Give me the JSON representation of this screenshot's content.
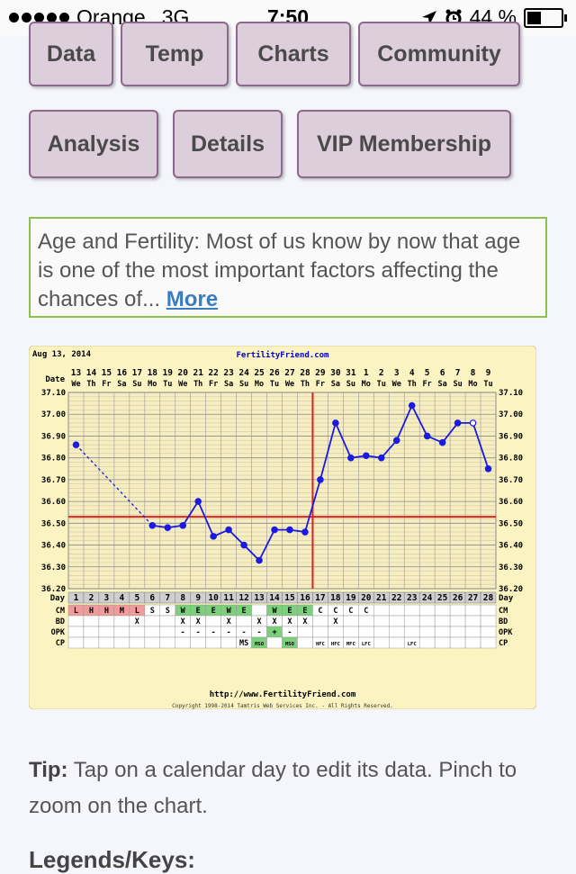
{
  "status": {
    "carrier": "Orange",
    "network": "3G",
    "time": "7:50",
    "battery": "44 %",
    "battery_level": 0.44
  },
  "nav": {
    "row1": [
      "Data",
      "Temp",
      "Charts",
      "Community"
    ],
    "row2": [
      "Analysis",
      "Details",
      "VIP Membership"
    ]
  },
  "promo": {
    "text": "Age and Fertility: Most of us know by now that age is one of the most important factors affecting the chances of...",
    "more": "More"
  },
  "chart_data": {
    "type": "line",
    "date_label": "Aug 13, 2014",
    "site": "FertilityFriend.com",
    "footer_url": "http://www.FertilityFriend.com",
    "copyright": "Copyright 1998-2014 Tamtris Web Services Inc. - All Rights Reserved.",
    "row_label_date": "Date",
    "row_label_day": "Day",
    "dates": [
      "13",
      "14",
      "15",
      "16",
      "17",
      "18",
      "19",
      "20",
      "21",
      "22",
      "23",
      "24",
      "25",
      "26",
      "27",
      "28",
      "29",
      "30",
      "31",
      "1",
      "2",
      "3",
      "4",
      "5",
      "6",
      "7",
      "8",
      "9"
    ],
    "weekdays": [
      "We",
      "Th",
      "Fr",
      "Sa",
      "Su",
      "Mo",
      "Tu",
      "We",
      "Th",
      "Fr",
      "Sa",
      "Su",
      "Mo",
      "Tu",
      "We",
      "Th",
      "Fr",
      "Sa",
      "Su",
      "Mo",
      "Tu",
      "We",
      "Th",
      "Fr",
      "Sa",
      "Su",
      "Mo",
      "Tu"
    ],
    "days": [
      1,
      2,
      3,
      4,
      5,
      6,
      7,
      8,
      9,
      10,
      11,
      12,
      13,
      14,
      15,
      16,
      17,
      18,
      19,
      20,
      21,
      22,
      23,
      24,
      25,
      26,
      27,
      28
    ],
    "temps": [
      36.86,
      null,
      null,
      null,
      null,
      36.49,
      36.48,
      36.49,
      36.6,
      36.44,
      36.47,
      36.4,
      36.33,
      36.47,
      36.47,
      36.46,
      36.7,
      36.96,
      36.8,
      36.81,
      36.8,
      36.88,
      37.04,
      36.9,
      36.87,
      36.96,
      36.96,
      36.75
    ],
    "open_points": [
      26
    ],
    "yticks": [
      "37.10",
      "37.00",
      "36.90",
      "36.80",
      "36.70",
      "36.60",
      "36.50",
      "36.40",
      "36.30",
      "36.20"
    ],
    "ylim": [
      36.2,
      37.1
    ],
    "coverline": 36.53,
    "ovulation_day": 16,
    "rows": {
      "CM": {
        "label": "CM",
        "values": [
          "L",
          "H",
          "H",
          "M",
          "L",
          "S",
          "S",
          "W",
          "E",
          "E",
          "W",
          "E",
          "",
          "W",
          "E",
          "E",
          "C",
          "C",
          "C",
          "C",
          "",
          "",
          "",
          "",
          "",
          "",
          "",
          ""
        ]
      },
      "BD": {
        "label": "BD",
        "values": [
          "",
          "",
          "",
          "",
          "X",
          "",
          "",
          "X",
          "X",
          "",
          "X",
          "",
          "X",
          "X",
          "X",
          "X",
          "",
          "X",
          "",
          "",
          "",
          "",
          "",
          "",
          "",
          "",
          "",
          ""
        ]
      },
      "OPK": {
        "label": "OPK",
        "values": [
          "",
          "",
          "",
          "",
          "",
          "",
          "",
          "-",
          "-",
          "-",
          "-",
          "-",
          "-",
          "+",
          "-",
          "",
          "",
          "",
          "",
          "",
          "",
          "",
          "",
          "",
          "",
          "",
          "",
          ""
        ]
      },
      "CP": {
        "label": "CP",
        "values": [
          "",
          "",
          "",
          "",
          "",
          "",
          "",
          "",
          "",
          "",
          "",
          "MS",
          "MSO",
          "",
          "MSO",
          "",
          "HFC",
          "HFC",
          "MFC",
          "LFC",
          "",
          "",
          "LFC",
          "",
          "",
          "",
          "",
          ""
        ]
      }
    }
  },
  "tip": {
    "label": "Tip:",
    "text": " Tap on a calendar day to edit its data. Pinch to zoom on the chart."
  },
  "legends": {
    "title": "Legends/Keys:"
  }
}
